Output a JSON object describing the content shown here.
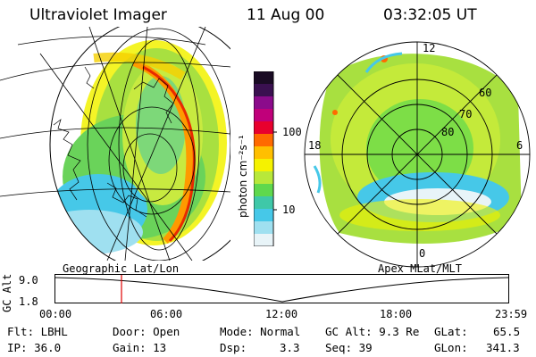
{
  "header": {
    "instrument": "Ultraviolet Imager",
    "date": "11 Aug 00",
    "time": "03:32:05 UT"
  },
  "colorbar": {
    "unit_label": "photon cm⁻²s⁻¹",
    "ticks": [
      "100",
      "10"
    ],
    "colors": [
      "#1a0b24",
      "#3a1050",
      "#8b0b8b",
      "#c0007a",
      "#e8002e",
      "#ff6a00",
      "#ffbf00",
      "#f5f200",
      "#b8e83a",
      "#5fd84d",
      "#3fc8a8",
      "#46c8e8",
      "#9fe0f0",
      "#e8f4f8"
    ]
  },
  "left_panel": {
    "caption": "Geographic Lat/Lon"
  },
  "right_panel": {
    "caption": "Apex MLat/MLT",
    "mlt_labels": {
      "top": "12",
      "left": "18",
      "right": "6",
      "bottom": "0"
    },
    "lat_labels": [
      "60",
      "70",
      "80"
    ]
  },
  "altitude_track": {
    "axis_label": "GC Alt",
    "y_ticks": [
      "9.0",
      "1.8"
    ],
    "time_ticks": [
      "00:00",
      "06:00",
      "12:00",
      "18:00",
      "23:59"
    ],
    "cursor_time": "03:32"
  },
  "info": {
    "flt": "Flt: LBHL",
    "ip": "IP: 36.0",
    "door": "Door: Open",
    "gain": "Gain: 13",
    "mode": "Mode: Normal",
    "dsp_label": "Dsp:",
    "dsp_value": "3.3",
    "gcalt": "GC Alt: 9.3 Re",
    "seq": "Seq: 39",
    "glat_label": "GLat:",
    "glat_value": "65.5",
    "glon_label": "GLon:",
    "glon_value": "341.3"
  }
}
